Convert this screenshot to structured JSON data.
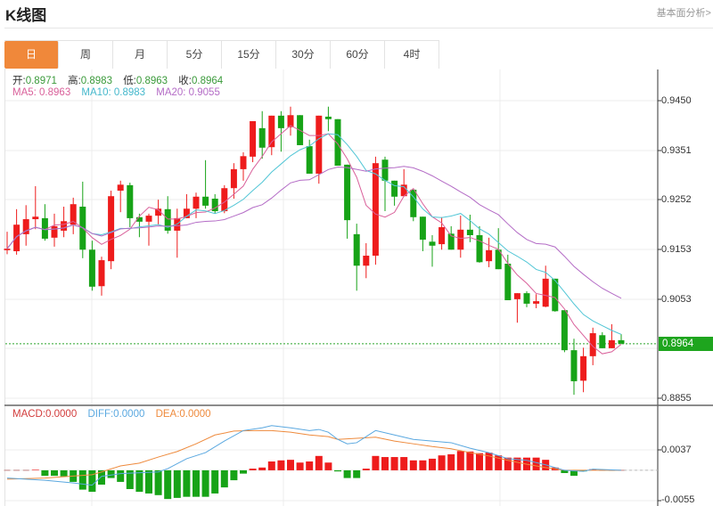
{
  "header": {
    "title": "K线图",
    "link": "基本面分析>"
  },
  "tabs": [
    {
      "label": "日",
      "active": true
    },
    {
      "label": "周"
    },
    {
      "label": "月"
    },
    {
      "label": "5分"
    },
    {
      "label": "15分"
    },
    {
      "label": "30分"
    },
    {
      "label": "60分"
    },
    {
      "label": "4时"
    }
  ],
  "ohlc": {
    "open_label": "开:",
    "open": "0.8971",
    "high_label": "高:",
    "high": "0.8983",
    "low_label": "低:",
    "low": "0.8963",
    "close_label": "收:",
    "close": "0.8964"
  },
  "ma": {
    "ma5": "MA5: 0.8963",
    "ma10": "MA10: 0.8983",
    "ma20": "MA20: 0.9055"
  },
  "macd_legend": {
    "macd": "MACD:0.0000",
    "diff": "DIFF:0.0000",
    "dea": "DEA:0.0000"
  },
  "price_axis": [
    "0.9450",
    "0.9351",
    "0.9252",
    "0.9153",
    "0.9053",
    "0.8855"
  ],
  "current_price": "0.8964",
  "macd_axis": [
    "0.0037",
    "-0.0055"
  ],
  "colors": {
    "up": "#ee1c1c",
    "down": "#17a317",
    "ma5": "#d9609a",
    "ma10": "#52c6d6",
    "ma20": "#b46cc6",
    "diff": "#5aa8e0",
    "dea": "#ee8a3c",
    "accent": "#f0883a"
  },
  "chart_data": {
    "type": "candlestick",
    "price_range": [
      0.8855,
      0.945
    ],
    "candles": [
      [
        0.9151,
        0.9188,
        0.9143,
        0.9154
      ],
      [
        0.9149,
        0.9233,
        0.9142,
        0.9202
      ],
      [
        0.9183,
        0.9241,
        0.916,
        0.9213
      ],
      [
        0.9213,
        0.9279,
        0.9193,
        0.9218
      ],
      [
        0.9215,
        0.9243,
        0.917,
        0.9174
      ],
      [
        0.9176,
        0.9224,
        0.9158,
        0.9199
      ],
      [
        0.919,
        0.9238,
        0.9177,
        0.9209
      ],
      [
        0.9202,
        0.9256,
        0.9183,
        0.9243
      ],
      [
        0.9238,
        0.9288,
        0.9135,
        0.9152
      ],
      [
        0.9152,
        0.917,
        0.907,
        0.9078
      ],
      [
        0.9079,
        0.9138,
        0.906,
        0.9131
      ],
      [
        0.9129,
        0.927,
        0.9113,
        0.9259
      ],
      [
        0.927,
        0.929,
        0.9227,
        0.9282
      ],
      [
        0.9281,
        0.9286,
        0.9197,
        0.9215
      ],
      [
        0.9217,
        0.9224,
        0.9177,
        0.9208
      ],
      [
        0.9208,
        0.9224,
        0.916,
        0.922
      ],
      [
        0.922,
        0.9252,
        0.9202,
        0.9234
      ],
      [
        0.9233,
        0.9259,
        0.9184,
        0.919
      ],
      [
        0.919,
        0.9234,
        0.9136,
        0.9215
      ],
      [
        0.9215,
        0.9263,
        0.9215,
        0.9234
      ],
      [
        0.9234,
        0.9266,
        0.9215,
        0.9258
      ],
      [
        0.9258,
        0.9331,
        0.9234,
        0.924
      ],
      [
        0.9254,
        0.9263,
        0.9224,
        0.9229
      ],
      [
        0.9229,
        0.9281,
        0.9225,
        0.9275
      ],
      [
        0.9275,
        0.9325,
        0.9254,
        0.9313
      ],
      [
        0.9313,
        0.9347,
        0.929,
        0.9339
      ],
      [
        0.9338,
        0.9409,
        0.9327,
        0.9409
      ],
      [
        0.9395,
        0.9429,
        0.9334,
        0.9356
      ],
      [
        0.9357,
        0.942,
        0.9341,
        0.942
      ],
      [
        0.942,
        0.9429,
        0.9348,
        0.9395
      ],
      [
        0.9397,
        0.9438,
        0.938,
        0.9421
      ],
      [
        0.9421,
        0.9421,
        0.9361,
        0.9361
      ],
      [
        0.9359,
        0.9372,
        0.9304,
        0.9304
      ],
      [
        0.9304,
        0.942,
        0.9284,
        0.942
      ],
      [
        0.9418,
        0.9438,
        0.9389,
        0.9413
      ],
      [
        0.9413,
        0.9413,
        0.932,
        0.932
      ],
      [
        0.9322,
        0.9322,
        0.9174,
        0.9211
      ],
      [
        0.9183,
        0.9204,
        0.907,
        0.912
      ],
      [
        0.912,
        0.9165,
        0.9095,
        0.914
      ],
      [
        0.914,
        0.9338,
        0.9122,
        0.9325
      ],
      [
        0.9332,
        0.9338,
        0.9229,
        0.929
      ],
      [
        0.929,
        0.929,
        0.924,
        0.9258
      ],
      [
        0.9259,
        0.9313,
        0.9259,
        0.9282
      ],
      [
        0.9272,
        0.9272,
        0.9209,
        0.9217
      ],
      [
        0.9218,
        0.9218,
        0.9149,
        0.9172
      ],
      [
        0.9168,
        0.9181,
        0.9118,
        0.916
      ],
      [
        0.9163,
        0.9217,
        0.9152,
        0.9197
      ],
      [
        0.9184,
        0.9199,
        0.9152,
        0.9152
      ],
      [
        0.9152,
        0.922,
        0.9136,
        0.9192
      ],
      [
        0.9192,
        0.9222,
        0.9167,
        0.9181
      ],
      [
        0.9181,
        0.9199,
        0.9126,
        0.9127
      ],
      [
        0.9129,
        0.9176,
        0.9117,
        0.9151
      ],
      [
        0.9152,
        0.9195,
        0.9113,
        0.9113
      ],
      [
        0.9124,
        0.9142,
        0.9051,
        0.9051
      ],
      [
        0.9053,
        0.9065,
        0.9006,
        0.9065
      ],
      [
        0.9065,
        0.9069,
        0.9037,
        0.9044
      ],
      [
        0.9044,
        0.9063,
        0.9035,
        0.9049
      ],
      [
        0.9038,
        0.912,
        0.9037,
        0.9094
      ],
      [
        0.9094,
        0.9094,
        0.9028,
        0.9029
      ],
      [
        0.9031,
        0.9031,
        0.8947,
        0.8951
      ],
      [
        0.8951,
        0.8974,
        0.8862,
        0.8889
      ],
      [
        0.889,
        0.8956,
        0.8867,
        0.8939
      ],
      [
        0.8939,
        0.8996,
        0.8921,
        0.8985
      ],
      [
        0.8981,
        0.8987,
        0.8955,
        0.8955
      ],
      [
        0.8955,
        0.9003,
        0.8955,
        0.8971
      ],
      [
        0.8971,
        0.8983,
        0.8963,
        0.8964
      ]
    ],
    "macd_range": [
      -0.0055,
      0.0037
    ],
    "macd_hist": [
      0,
      0,
      0,
      0.0001,
      -0.001,
      -0.001,
      -0.0011,
      -0.0021,
      -0.0035,
      -0.0039,
      -0.0026,
      -0.0014,
      -0.0021,
      -0.0034,
      -0.0039,
      -0.0042,
      -0.0045,
      -0.0052,
      -0.005,
      -0.0048,
      -0.0048,
      -0.0048,
      -0.0042,
      -0.0031,
      -0.0018,
      -0.0006,
      0.0003,
      0.0005,
      0.0016,
      0.0018,
      0.0019,
      0.0014,
      0.0016,
      0.0026,
      0.0014,
      -0.0002,
      -0.0014,
      -0.0014,
      0.0003,
      0.0026,
      0.0024,
      0.0024,
      0.0024,
      0.0018,
      0.0018,
      0.0021,
      0.0027,
      0.0029,
      0.0035,
      0.0034,
      0.0031,
      0.0032,
      0.0027,
      0.0023,
      0.0023,
      0.0023,
      0.0023,
      0.0019,
      0.0005,
      -0.0005,
      -0.001,
      -0.0002,
      0.0002,
      0,
      0,
      0
    ],
    "diff_points": [
      [
        0,
        -0.0014
      ],
      [
        4,
        -0.0018
      ],
      [
        7,
        -0.0023
      ],
      [
        9,
        -0.0027
      ],
      [
        10,
        -0.0011
      ],
      [
        12,
        -0.0006
      ],
      [
        16,
        -0.0003
      ],
      [
        17,
        0.0003
      ],
      [
        19,
        0.0021
      ],
      [
        21,
        0.0032
      ],
      [
        23,
        0.0053
      ],
      [
        25,
        0.0072
      ],
      [
        27,
        0.0077
      ],
      [
        28,
        0.0081
      ],
      [
        30,
        0.0077
      ],
      [
        32,
        0.0072
      ],
      [
        33,
        0.0074
      ],
      [
        34,
        0.0069
      ],
      [
        35,
        0.0056
      ],
      [
        36,
        0.0048
      ],
      [
        37,
        0.005
      ],
      [
        39,
        0.0072
      ],
      [
        41,
        0.0064
      ],
      [
        43,
        0.0056
      ],
      [
        45,
        0.0053
      ],
      [
        47,
        0.005
      ],
      [
        49,
        0.004
      ],
      [
        51,
        0.0032
      ],
      [
        53,
        0.0021
      ],
      [
        55,
        0.0018
      ],
      [
        57,
        0.001
      ],
      [
        59,
        0
      ],
      [
        61,
        -0.0002
      ],
      [
        62,
        0.0002
      ],
      [
        65,
        0
      ]
    ],
    "dea_points": [
      [
        0,
        -0.0016
      ],
      [
        4,
        -0.0014
      ],
      [
        9,
        -0.0008
      ],
      [
        10,
        -0.0003
      ],
      [
        12,
        0.0008
      ],
      [
        14,
        0.0013
      ],
      [
        16,
        0.0024
      ],
      [
        18,
        0.0034
      ],
      [
        20,
        0.0048
      ],
      [
        22,
        0.0064
      ],
      [
        24,
        0.0071
      ],
      [
        26,
        0.0072
      ],
      [
        28,
        0.0072
      ],
      [
        30,
        0.0069
      ],
      [
        32,
        0.0064
      ],
      [
        34,
        0.0061
      ],
      [
        35,
        0.0056
      ],
      [
        37,
        0.0058
      ],
      [
        39,
        0.006
      ],
      [
        41,
        0.0053
      ],
      [
        43,
        0.0048
      ],
      [
        45,
        0.0043
      ],
      [
        47,
        0.0039
      ],
      [
        49,
        0.0032
      ],
      [
        51,
        0.0026
      ],
      [
        53,
        0.0018
      ],
      [
        55,
        0.0011
      ],
      [
        57,
        0.0005
      ],
      [
        59,
        0
      ],
      [
        65,
        0
      ]
    ]
  }
}
